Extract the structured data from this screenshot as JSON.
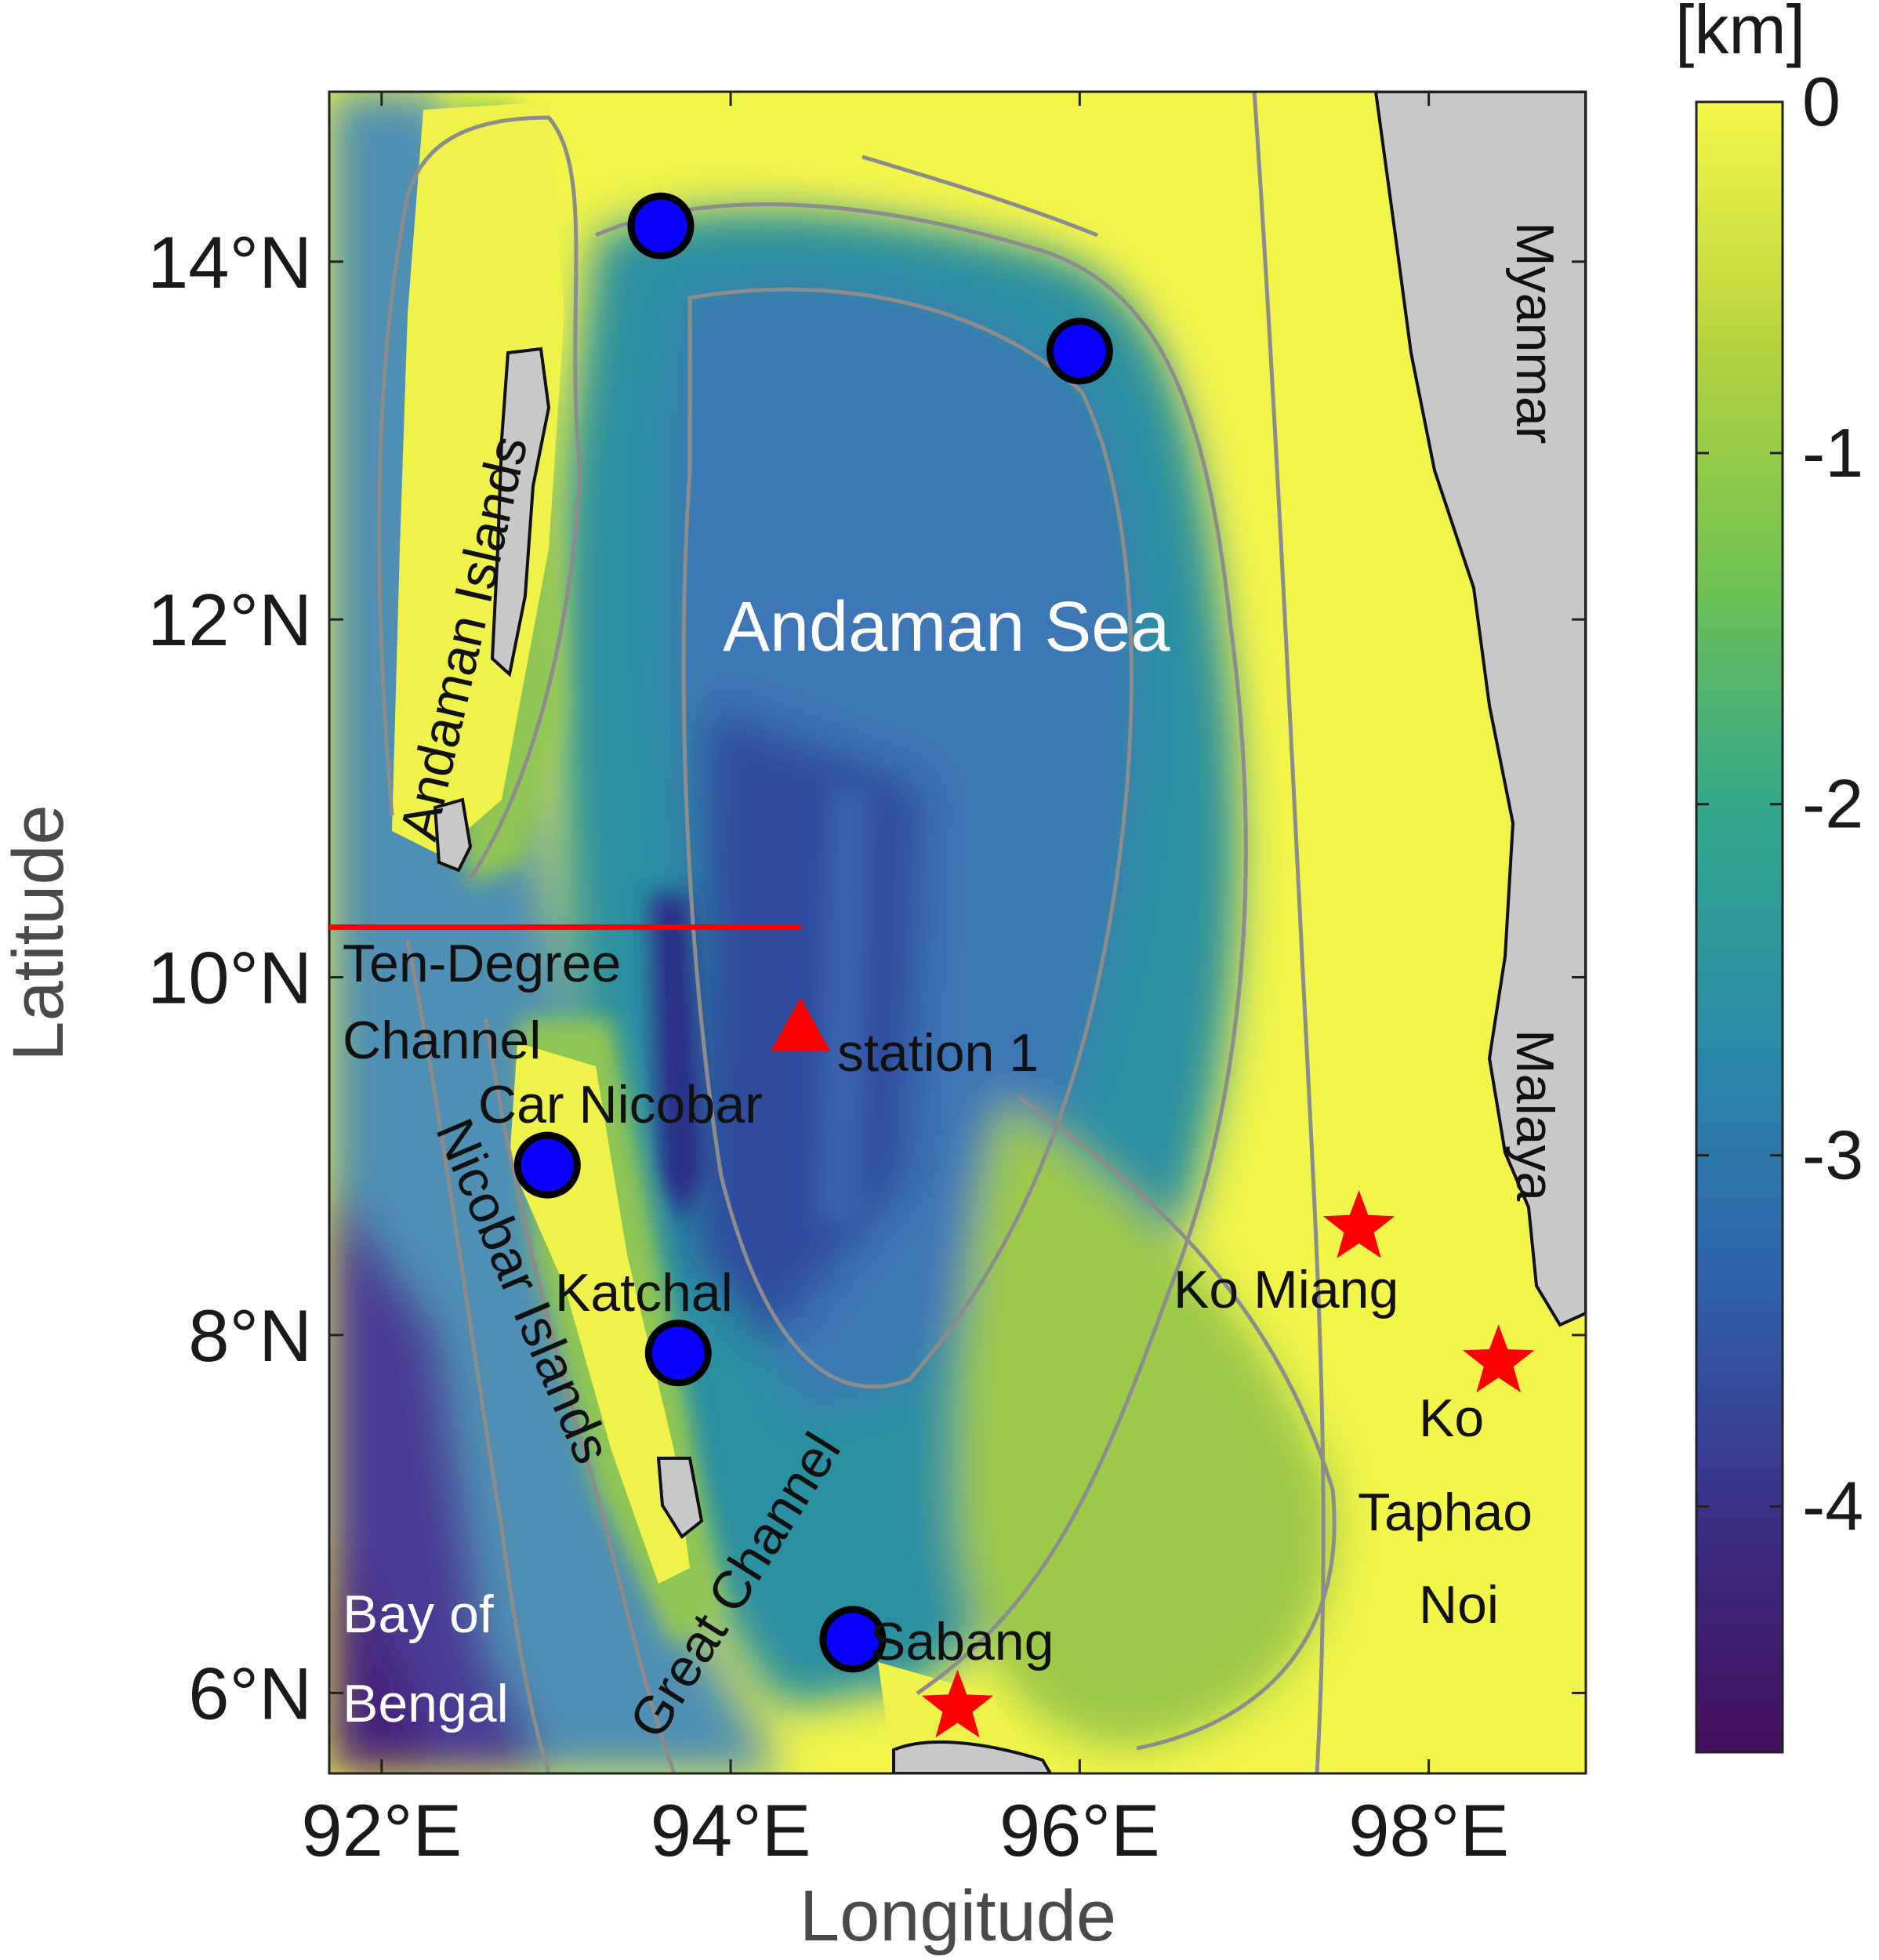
{
  "map": {
    "axes": {
      "xlabel": "Longitude",
      "ylabel": "Latitude",
      "lon_range": [
        91.7,
        98.9
      ],
      "lat_range": [
        5.55,
        14.95
      ],
      "x_ticks": [
        {
          "value": 92,
          "label": "92°E"
        },
        {
          "value": 94,
          "label": "94°E"
        },
        {
          "value": 96,
          "label": "96°E"
        },
        {
          "value": 98,
          "label": "98°E"
        }
      ],
      "y_ticks": [
        {
          "value": 6,
          "label": "6°N"
        },
        {
          "value": 8,
          "label": "8°N"
        },
        {
          "value": 10,
          "label": "10°N"
        },
        {
          "value": 12,
          "label": "12°N"
        },
        {
          "value": 14,
          "label": "14°N"
        }
      ]
    },
    "colorbar": {
      "unit": "[km]",
      "range": [
        -4.7,
        0
      ],
      "ticks": [
        {
          "value": 0,
          "label": "0"
        },
        {
          "value": -1,
          "label": "-1"
        },
        {
          "value": -2,
          "label": "-2"
        },
        {
          "value": -3,
          "label": "-3"
        },
        {
          "value": -4,
          "label": "-4"
        }
      ],
      "colors": [
        "#440e5c",
        "#3b2f85",
        "#2f63ad",
        "#2a8aa7",
        "#33a78c",
        "#6fc252",
        "#b9d43e",
        "#f6f74a"
      ]
    },
    "labels": {
      "andaman_sea": "Andaman Sea",
      "andaman_islands": "Andaman Islands",
      "nicobar_islands": "Nicobar Islands",
      "great_channel": "Great Channel",
      "ten_degree_line1": "Ten-Degree",
      "ten_degree_line2": "Channel",
      "car_nicobar": "Car Nicobar",
      "katchal": "Katchal",
      "station": "station 1",
      "sabang": "Sabang",
      "bay_line1": "Bay of",
      "bay_line2": "Bengal",
      "myanmar": "Myanmar",
      "malaya": "Malaya",
      "ko_miang": "Ko Miang",
      "ko_taphao_line1": "Ko",
      "ko_taphao_line2": "Taphao",
      "ko_taphao_line3": "Noi"
    },
    "markers": {
      "blue_circles": [
        {
          "lon": 93.6,
          "lat": 14.2
        },
        {
          "lon": 96.0,
          "lat": 13.5
        },
        {
          "lon": 92.95,
          "lat": 8.95
        },
        {
          "lon": 93.7,
          "lat": 7.9
        },
        {
          "lon": 94.7,
          "lat": 6.3
        }
      ],
      "red_stars": [
        {
          "lon": 97.6,
          "lat": 8.6
        },
        {
          "lon": 98.4,
          "lat": 7.85
        },
        {
          "lon": 95.3,
          "lat": 5.92
        }
      ],
      "red_triangle": {
        "lon": 94.4,
        "lat": 9.72
      },
      "red_line": {
        "lon_start": 91.7,
        "lon_end": 94.4,
        "lat": 10.28
      }
    },
    "colors": {
      "circle_fill": "#0a00ff",
      "marker_red": "#ff0000",
      "land_gray": "#c8c8c8"
    }
  }
}
